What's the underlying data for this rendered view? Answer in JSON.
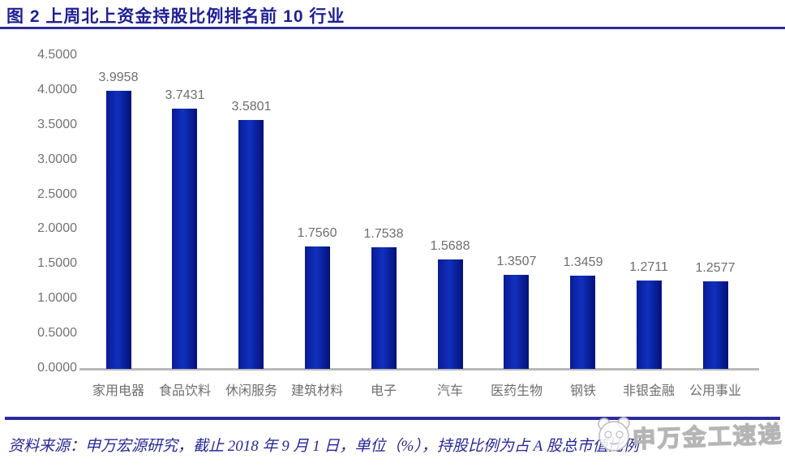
{
  "figure": {
    "title": "图 2 上周北上资金持股比例排名前 10 行业",
    "source_note": "资料来源：申万宏源研究，截止 2018 年 9 月 1 日，单位（%），持股比例为占 A 股总市值比例",
    "watermark_text": "申万金工速递"
  },
  "colors": {
    "title_navy": "#1f1f96",
    "rule_navy": "#2b2b9e",
    "bar_blue": "#0b23ad",
    "bar_edge_blue": "#051078",
    "axis_text_gray": "#737373",
    "label_text_gray": "#6e6e6e",
    "baseline_gray": "#b8b8b8",
    "watermark_gray": "#bdbdbd"
  },
  "chart_data": {
    "type": "bar",
    "title": "上周北上资金持股比例排名前 10 行业",
    "categories": [
      "家用电器",
      "食品饮料",
      "休闲服务",
      "建筑材料",
      "电子",
      "汽车",
      "医药生物",
      "钢铁",
      "非银金融",
      "公用事业"
    ],
    "values": [
      3.9958,
      3.7431,
      3.5801,
      1.756,
      1.7538,
      1.5688,
      1.3507,
      1.3459,
      1.2711,
      1.2577
    ],
    "value_labels": [
      "3.9958",
      "3.7431",
      "3.5801",
      "1.7560",
      "1.7538",
      "1.5688",
      "1.3507",
      "1.3459",
      "1.2711",
      "1.2577"
    ],
    "xlabel": "",
    "ylabel": "",
    "unit": "%",
    "ylim": [
      0,
      4.5
    ],
    "ytick_values": [
      0,
      0.5,
      1,
      1.5,
      2,
      2.5,
      3,
      3.5,
      4,
      4.5
    ],
    "ytick_labels": [
      "0.0000",
      "0.5000",
      "1.0000",
      "1.5000",
      "2.0000",
      "2.5000",
      "3.0000",
      "3.5000",
      "4.0000",
      "4.5000"
    ],
    "grid": false,
    "legend": false
  }
}
